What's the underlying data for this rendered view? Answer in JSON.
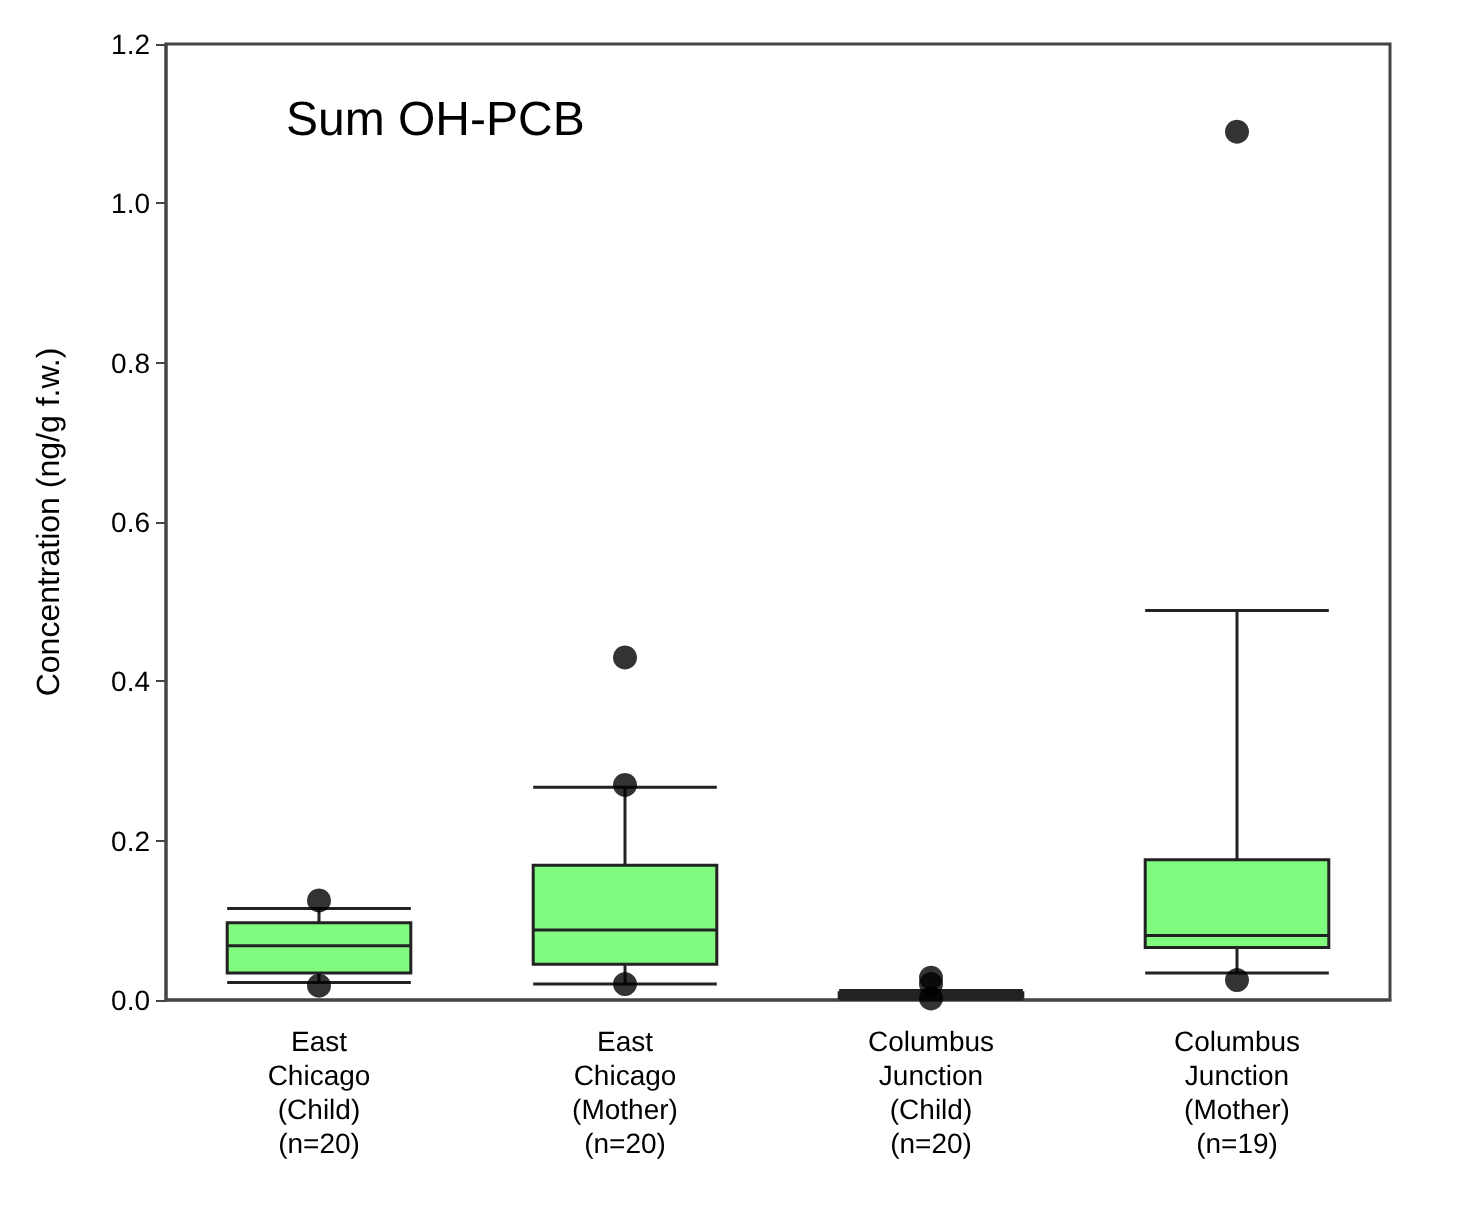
{
  "chart_data": {
    "type": "box",
    "ylabel": "Concentration (ng/g f.w.)",
    "annotations": [
      "Sum OH-PCB"
    ],
    "categories": [
      "East\nChicago\n(Child)\n(n=20)",
      "East\nChicago\n(Mother)\n(n=20)",
      "Columbus\nJunction\n(Child)\n(n=20)",
      "Columbus\nJunction\n(Mother)\n(n=19)"
    ],
    "color": "#80fb80",
    "boxes": [
      {
        "low": 0.022,
        "q1": 0.034,
        "median": 0.068,
        "q3": 0.097,
        "high": 0.115,
        "outliers": [
          0.125,
          0.018
        ]
      },
      {
        "low": 0.02,
        "q1": 0.045,
        "median": 0.088,
        "q3": 0.169,
        "high": 0.267,
        "outliers": [
          0.27,
          0.43,
          0.02
        ]
      },
      {
        "low": 0.001,
        "q1": 0.003,
        "median": 0.006,
        "q3": 0.009,
        "high": 0.012,
        "outliers": [
          0.028,
          0.02,
          0.002
        ]
      },
      {
        "low": 0.034,
        "q1": 0.066,
        "median": 0.081,
        "q3": 0.176,
        "high": 0.489,
        "outliers": [
          1.09,
          0.025
        ]
      }
    ],
    "ylim": [
      0,
      1.2
    ],
    "yticks": [
      {
        "value": 0,
        "label": "0.0"
      },
      {
        "value": 0.2,
        "label": "0.2"
      },
      {
        "value": 0.4,
        "label": "0.4"
      },
      {
        "value": 0.6,
        "label": "0.6"
      },
      {
        "value": 0.8,
        "label": "0.8"
      },
      {
        "value": 1,
        "label": "1.0"
      },
      {
        "value": 1.2,
        "label": "1.2"
      }
    ],
    "grid": false
  }
}
